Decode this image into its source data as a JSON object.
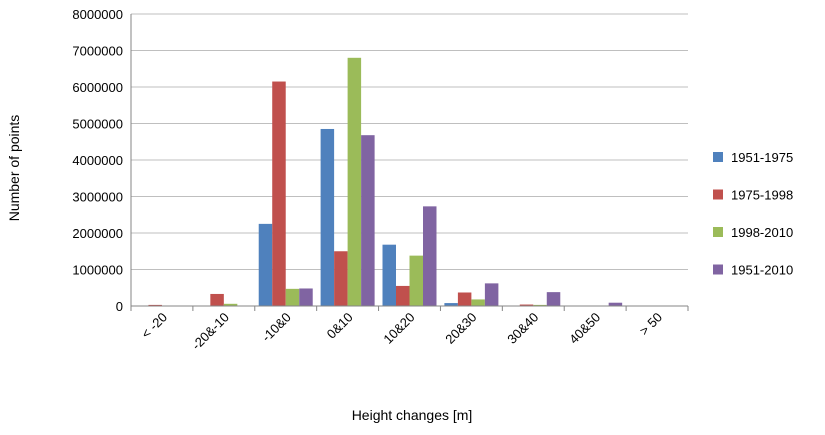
{
  "chart_data": {
    "type": "bar",
    "title": "",
    "xlabel": "Height changes [m]",
    "ylabel": "Number of points",
    "ylim": [
      0,
      8000000
    ],
    "yticks": [
      "0",
      "1000000",
      "2000000",
      "3000000",
      "4000000",
      "5000000",
      "6000000",
      "7000000",
      "8000000"
    ],
    "grid": "horizontal",
    "legend_position": "right",
    "categories": [
      "< -20",
      "-20&-10",
      "-10&0",
      "0&10",
      "10&20",
      "20&30",
      "30&40",
      "40&50",
      "> 50"
    ],
    "series": [
      {
        "name": "1951-1975",
        "color": "#4F81BD",
        "values": [
          0,
          0,
          2250000,
          4850000,
          1680000,
          80000,
          0,
          0,
          0
        ]
      },
      {
        "name": "1975-1998",
        "color": "#C0504D",
        "values": [
          30000,
          330000,
          6150000,
          1500000,
          550000,
          370000,
          40000,
          0,
          0
        ]
      },
      {
        "name": "1998-2010",
        "color": "#9BBB59",
        "values": [
          0,
          60000,
          470000,
          6800000,
          1380000,
          180000,
          30000,
          0,
          0
        ]
      },
      {
        "name": "1951-2010",
        "color": "#8064A2",
        "values": [
          0,
          0,
          480000,
          4680000,
          2730000,
          620000,
          380000,
          90000,
          0
        ]
      }
    ]
  }
}
